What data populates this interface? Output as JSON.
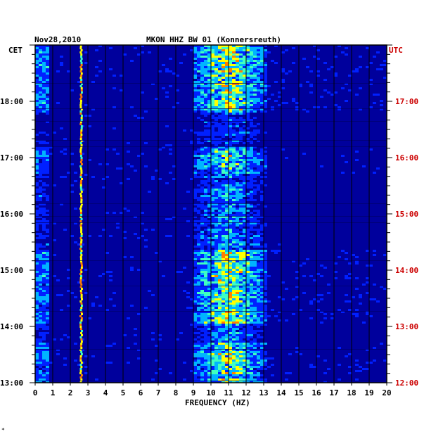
{
  "chart_data": {
    "type": "heatmap",
    "date": "Nov28,2010",
    "title": "MKON HHZ BW 01 (Konnersreuth)",
    "xlabel": "FREQUENCY (HZ)",
    "x_ticks": [
      "0",
      "1",
      "2",
      "3",
      "4",
      "5",
      "6",
      "7",
      "8",
      "9",
      "10",
      "11",
      "12",
      "13",
      "14",
      "15",
      "16",
      "17",
      "18",
      "19",
      "20"
    ],
    "xlim": [
      0,
      20
    ],
    "left_axis": {
      "label": "CET",
      "ticks": [
        "18:00",
        "17:00",
        "16:00",
        "15:00",
        "14:00",
        "13:00"
      ]
    },
    "right_axis": {
      "label": "UTC",
      "ticks": [
        "17:00",
        "16:00",
        "15:00",
        "14:00",
        "13:00",
        "12:00"
      ]
    },
    "time_range_cet": [
      "13:00",
      "19:00"
    ],
    "colormap": [
      "#00008c",
      "#0020ff",
      "#00b4ff",
      "#40ffc0",
      "#ffff00",
      "#ff7f00",
      "#ff0000"
    ],
    "background_color": "#00009c",
    "features": [
      {
        "name": "low-frequency band",
        "freq_range": [
          0.1,
          0.6
        ],
        "intensity": "medium-high"
      },
      {
        "name": "narrow line",
        "freq": 2.6,
        "intensity": "high"
      },
      {
        "name": "main energy band",
        "freq_range": [
          9,
          13
        ],
        "intensity": "high"
      },
      {
        "name": "intermittent energy",
        "freq_range": [
          13,
          20
        ],
        "intensity": "low"
      }
    ]
  },
  "footer_mark": "*"
}
